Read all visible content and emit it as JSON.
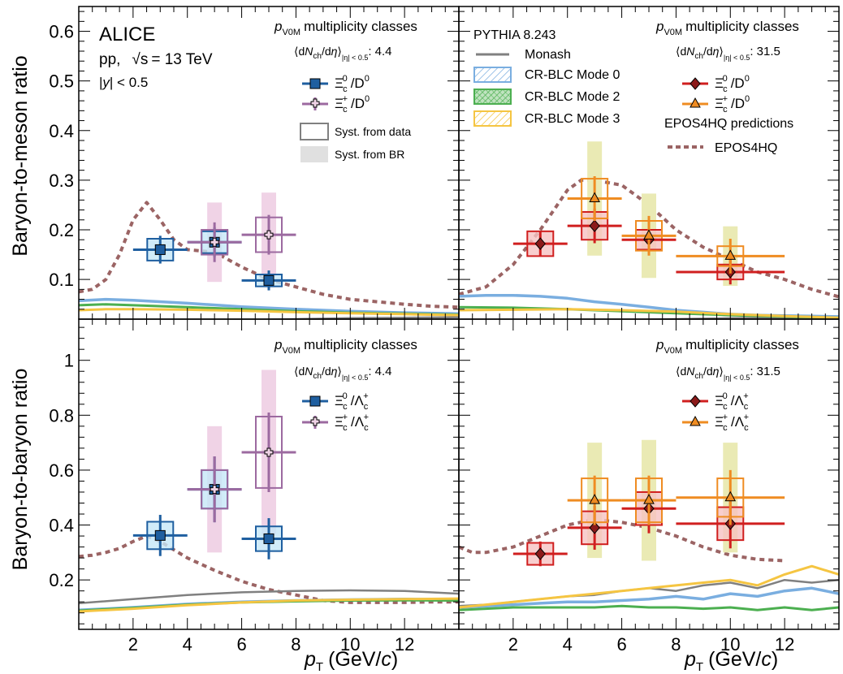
{
  "labels": {
    "ylabel_top": "Baryon-to-meson ratio",
    "ylabel_bottom": "Baryon-to-baryon ratio",
    "xlabel_p": "p",
    "xlabel_sub": "T",
    "xlabel_unit_open": "(GeV/",
    "xlabel_unit_c": "c",
    "xlabel_unit_close": ")",
    "alice": "ALICE",
    "system_pp": "pp,",
    "sqrt_s": "√s",
    "energy": "= 13 TeV",
    "rapidity_open": "|",
    "rapidity_y": "y",
    "rapidity_close": "| < 0.5",
    "class_p": "p",
    "class_sub": "V0M",
    "class_text": "multiplicity classes",
    "mult_open": "⟨d",
    "mult_N": "N",
    "mult_ch": "ch",
    "mult_slash": "/d",
    "mult_eta": "η",
    "mult_close": "⟩",
    "mult_sub": "|η| < 0.5",
    "mult_low": ": 4.4",
    "mult_high": ": 31.5",
    "pythia": "PYTHIA 8.243",
    "monash": "Monash",
    "cr0": "CR-BLC Mode 0",
    "cr2": "CR-BLC Mode 2",
    "cr3": "CR-BLC Mode 3",
    "epos_group": "EPOS4HQ predictions",
    "epos": "EPOS4HQ",
    "syst_data": "Syst. from data",
    "syst_br": "Syst. from BR",
    "xi": "Ξ",
    "xi_sub_0": "c",
    "xi_sup_0": "0",
    "xi_sup_p": "+",
    "slash_D": "/D",
    "D_sup": "0",
    "slash_L": "/Λ",
    "L_sub": "c",
    "L_sup": "+"
  },
  "colors": {
    "blue": "#1f5fa0",
    "blue_fill": "#c6e7f8",
    "purple": "#9c6aa0",
    "purple_fill": "#f0d3e6",
    "red": "#d01f1f",
    "red_fill": "#f6c2c2",
    "orange": "#ef8c22",
    "olive_band": "#eaeab4",
    "epos": "#9b6464",
    "monash": "#808080",
    "cr0": "#7aaee0",
    "cr2": "#4caf50",
    "cr3": "#f5c542"
  },
  "chart_data": [
    {
      "type": "scatter",
      "panel": "top-left",
      "ylabel": "Baryon-to-meson ratio",
      "xlim": [
        0,
        14
      ],
      "ylim": [
        0.02,
        0.65
      ],
      "xticks": [
        2,
        4,
        6,
        8,
        10,
        12
      ],
      "yticks": [
        0.1,
        0.2,
        0.3,
        0.4,
        0.5,
        0.6
      ],
      "mult": "4.4",
      "series": [
        {
          "name": "Ξc0/D0",
          "color": "blue",
          "marker": "square",
          "points": [
            {
              "x": 3,
              "xerr": 1,
              "y": 0.16,
              "stat": 0.028,
              "sys": 0.022,
              "br": 0.0
            },
            {
              "x": 5,
              "xerr": 1,
              "y": 0.175,
              "stat": 0.03,
              "sys": 0.022,
              "br": 0.0
            },
            {
              "x": 7,
              "xerr": 1,
              "y": 0.098,
              "stat": 0.02,
              "sys": 0.012,
              "br": 0.0
            }
          ]
        },
        {
          "name": "Ξc+/D0",
          "color": "purple",
          "marker": "cross",
          "points": [
            {
              "x": 5,
              "xerr": 1,
              "y": 0.175,
              "stat": 0.04,
              "sys": 0.025,
              "br": 0.08
            },
            {
              "x": 7,
              "xerr": 1,
              "y": 0.19,
              "stat": 0.04,
              "sys": 0.035,
              "br": 0.085
            }
          ]
        }
      ],
      "curves": [
        {
          "name": "EPOS4HQ",
          "x": [
            0,
            0.5,
            1,
            1.5,
            2,
            2.5,
            3,
            3.5,
            4,
            5,
            6,
            7,
            8,
            9,
            10,
            11,
            12,
            13,
            14
          ],
          "y": [
            0.075,
            0.08,
            0.1,
            0.15,
            0.22,
            0.255,
            0.22,
            0.18,
            0.16,
            0.155,
            0.125,
            0.1,
            0.085,
            0.07,
            0.06,
            0.055,
            0.05,
            0.046,
            0.044
          ]
        },
        {
          "name": "Monash",
          "x": [
            0,
            2,
            4,
            6,
            8,
            10,
            12,
            14
          ],
          "y": [
            0.012,
            0.014,
            0.016,
            0.018,
            0.02,
            0.022,
            0.023,
            0.024
          ]
        },
        {
          "name": "CR-BLC Mode 0",
          "x": [
            0,
            1,
            2,
            4,
            6,
            8,
            10,
            12,
            14
          ],
          "y": [
            0.057,
            0.06,
            0.058,
            0.052,
            0.045,
            0.04,
            0.036,
            0.033,
            0.031
          ]
        },
        {
          "name": "CR-BLC Mode 2",
          "x": [
            0,
            1,
            2,
            4,
            6,
            8,
            10,
            12,
            14
          ],
          "y": [
            0.048,
            0.05,
            0.048,
            0.044,
            0.04,
            0.036,
            0.033,
            0.031,
            0.029
          ]
        },
        {
          "name": "CR-BLC Mode 3",
          "x": [
            0,
            1,
            2,
            4,
            6,
            8,
            10,
            12,
            14
          ],
          "y": [
            0.038,
            0.04,
            0.04,
            0.039,
            0.037,
            0.034,
            0.032,
            0.03,
            0.028
          ]
        }
      ]
    },
    {
      "type": "scatter",
      "panel": "top-right",
      "xlim": [
        0,
        14
      ],
      "ylim": [
        0.02,
        0.65
      ],
      "xticks": [
        2,
        4,
        6,
        8,
        10,
        12
      ],
      "mult": "31.5",
      "series": [
        {
          "name": "Ξc0/D0",
          "color": "red",
          "marker": "diamond",
          "points": [
            {
              "x": 3,
              "xerr": 1,
              "y": 0.172,
              "stat": 0.025,
              "sys": 0.025,
              "br": 0.0
            },
            {
              "x": 5,
              "xerr": 1,
              "y": 0.208,
              "stat": 0.035,
              "sys": 0.028,
              "br": 0.0
            },
            {
              "x": 7,
              "xerr": 1,
              "y": 0.18,
              "stat": 0.025,
              "sys": 0.02,
              "br": 0.0
            },
            {
              "x": 10,
              "xerr": 2,
              "y": 0.115,
              "stat": 0.025,
              "sys": 0.015,
              "br": 0.0
            }
          ]
        },
        {
          "name": "Ξc+/D0",
          "color": "orange",
          "marker": "triangle",
          "points": [
            {
              "x": 5,
              "xerr": 1,
              "y": 0.263,
              "stat": 0.045,
              "sys": 0.04,
              "br": 0.115
            },
            {
              "x": 7,
              "xerr": 1,
              "y": 0.188,
              "stat": 0.04,
              "sys": 0.03,
              "br": 0.085
            },
            {
              "x": 10,
              "xerr": 2,
              "y": 0.147,
              "stat": 0.035,
              "sys": 0.02,
              "br": 0.06
            }
          ]
        }
      ],
      "curves": [
        {
          "name": "EPOS4HQ",
          "x": [
            0,
            1,
            2,
            3,
            3.5,
            4,
            4.5,
            5,
            6,
            7,
            8,
            9,
            10,
            11,
            12,
            13,
            14
          ],
          "y": [
            0.07,
            0.085,
            0.13,
            0.2,
            0.24,
            0.28,
            0.3,
            0.3,
            0.29,
            0.25,
            0.2,
            0.165,
            0.14,
            0.115,
            0.1,
            0.08,
            0.065
          ]
        },
        {
          "name": "Monash",
          "x": [
            0,
            2,
            4,
            6,
            8,
            10,
            12,
            14
          ],
          "y": [
            0.012,
            0.014,
            0.016,
            0.018,
            0.02,
            0.022,
            0.023,
            0.024
          ]
        },
        {
          "name": "CR-BLC Mode 0",
          "x": [
            0,
            1,
            2,
            3,
            4,
            5,
            6,
            7,
            8,
            9,
            10,
            11,
            12,
            13,
            14
          ],
          "y": [
            0.066,
            0.068,
            0.068,
            0.066,
            0.062,
            0.055,
            0.05,
            0.044,
            0.038,
            0.034,
            0.03,
            0.028,
            0.027,
            0.026,
            0.025
          ]
        },
        {
          "name": "CR-BLC Mode 2",
          "x": [
            0,
            2,
            4,
            6,
            8,
            10,
            12,
            14
          ],
          "y": [
            0.044,
            0.043,
            0.04,
            0.036,
            0.032,
            0.028,
            0.025,
            0.022
          ]
        },
        {
          "name": "CR-BLC Mode 3",
          "x": [
            0,
            2,
            4,
            6,
            8,
            10,
            12,
            14
          ],
          "y": [
            0.038,
            0.039,
            0.04,
            0.038,
            0.035,
            0.03,
            0.026,
            0.023
          ]
        }
      ]
    },
    {
      "type": "scatter",
      "panel": "bottom-left",
      "ylabel": "Baryon-to-baryon ratio",
      "xlim": [
        0,
        14
      ],
      "ylim": [
        0.02,
        1.15
      ],
      "xticks": [
        2,
        4,
        6,
        8,
        10,
        12
      ],
      "yticks": [
        0.2,
        0.4,
        0.6,
        0.8,
        1
      ],
      "mult": "4.4",
      "series": [
        {
          "name": "Ξc0/Λc+",
          "color": "blue",
          "marker": "square",
          "points": [
            {
              "x": 3,
              "xerr": 1,
              "y": 0.362,
              "stat": 0.075,
              "sys": 0.05,
              "br": 0.0
            },
            {
              "x": 5,
              "xerr": 1,
              "y": 0.53,
              "stat": 0.12,
              "sys": 0.07,
              "br": 0.0
            },
            {
              "x": 7,
              "xerr": 1,
              "y": 0.35,
              "stat": 0.075,
              "sys": 0.045,
              "br": 0.0
            }
          ]
        },
        {
          "name": "Ξc+/Λc+",
          "color": "purple",
          "marker": "cross",
          "points": [
            {
              "x": 5,
              "xerr": 1,
              "y": 0.53,
              "stat": 0.12,
              "sys": 0.07,
              "br": 0.23
            },
            {
              "x": 7,
              "xerr": 1,
              "y": 0.665,
              "stat": 0.145,
              "sys": 0.13,
              "br": 0.3
            }
          ]
        }
      ],
      "curves": [
        {
          "name": "EPOS4HQ",
          "x": [
            0,
            0.5,
            1,
            1.5,
            2,
            2.5,
            3,
            4,
            5,
            6,
            7,
            8,
            9,
            10,
            11,
            12,
            13,
            14
          ],
          "y": [
            0.285,
            0.29,
            0.3,
            0.315,
            0.34,
            0.36,
            0.34,
            0.28,
            0.235,
            0.195,
            0.165,
            0.145,
            0.125,
            0.118,
            0.118,
            0.118,
            0.12,
            0.12
          ]
        },
        {
          "name": "Monash",
          "x": [
            0,
            2,
            4,
            6,
            8,
            10,
            12,
            14
          ],
          "y": [
            0.115,
            0.13,
            0.145,
            0.155,
            0.16,
            0.162,
            0.16,
            0.15
          ]
        },
        {
          "name": "CR-BLC Mode 0",
          "x": [
            0,
            2,
            4,
            6,
            8,
            10,
            12,
            14
          ],
          "y": [
            0.09,
            0.1,
            0.112,
            0.12,
            0.125,
            0.128,
            0.13,
            0.128
          ]
        },
        {
          "name": "CR-BLC Mode 2",
          "x": [
            0,
            2,
            4,
            6,
            8,
            10,
            12,
            14
          ],
          "y": [
            0.088,
            0.098,
            0.11,
            0.118,
            0.122,
            0.125,
            0.126,
            0.125
          ]
        },
        {
          "name": "CR-BLC Mode 3",
          "x": [
            0,
            2,
            4,
            6,
            8,
            10,
            12,
            14
          ],
          "y": [
            0.085,
            0.095,
            0.108,
            0.118,
            0.125,
            0.128,
            0.13,
            0.132
          ]
        }
      ]
    },
    {
      "type": "scatter",
      "panel": "bottom-right",
      "xlim": [
        0,
        14
      ],
      "ylim": [
        0.02,
        1.15
      ],
      "xticks": [
        2,
        4,
        6,
        8,
        10,
        12
      ],
      "mult": "31.5",
      "series": [
        {
          "name": "Ξc0/Λc+",
          "color": "red",
          "marker": "diamond",
          "points": [
            {
              "x": 3,
              "xerr": 1,
              "y": 0.295,
              "stat": 0.045,
              "sys": 0.04,
              "br": 0.0
            },
            {
              "x": 5,
              "xerr": 1,
              "y": 0.39,
              "stat": 0.08,
              "sys": 0.06,
              "br": 0.0
            },
            {
              "x": 7,
              "xerr": 1,
              "y": 0.46,
              "stat": 0.09,
              "sys": 0.06,
              "br": 0.0
            },
            {
              "x": 10,
              "xerr": 2,
              "y": 0.405,
              "stat": 0.09,
              "sys": 0.06,
              "br": 0.0
            }
          ]
        },
        {
          "name": "Ξc+/Λc+",
          "color": "orange",
          "marker": "triangle",
          "points": [
            {
              "x": 5,
              "xerr": 1,
              "y": 0.49,
              "stat": 0.09,
              "sys": 0.08,
              "br": 0.21
            },
            {
              "x": 7,
              "xerr": 1,
              "y": 0.49,
              "stat": 0.09,
              "sys": 0.08,
              "br": 0.22
            },
            {
              "x": 10,
              "xerr": 2,
              "y": 0.5,
              "stat": 0.1,
              "sys": 0.07,
              "br": 0.2
            }
          ]
        }
      ],
      "curves": [
        {
          "name": "EPOS4HQ",
          "x": [
            0,
            0.5,
            1,
            2,
            3,
            4,
            5,
            6,
            7,
            8,
            9,
            10,
            11,
            12
          ],
          "y": [
            0.32,
            0.3,
            0.3,
            0.32,
            0.36,
            0.4,
            0.42,
            0.41,
            0.39,
            0.36,
            0.32,
            0.29,
            0.275,
            0.27
          ]
        },
        {
          "name": "Monash",
          "x": [
            0,
            1,
            2,
            3,
            4,
            5,
            6,
            7,
            8,
            9,
            10,
            11,
            12,
            13,
            14
          ],
          "y": [
            0.105,
            0.11,
            0.12,
            0.13,
            0.14,
            0.145,
            0.16,
            0.17,
            0.16,
            0.18,
            0.19,
            0.17,
            0.2,
            0.19,
            0.2
          ]
        },
        {
          "name": "CR-BLC Mode 0",
          "x": [
            0,
            1,
            2,
            3,
            4,
            5,
            6,
            7,
            8,
            9,
            10,
            11,
            12,
            13,
            14
          ],
          "y": [
            0.1,
            0.105,
            0.11,
            0.115,
            0.12,
            0.12,
            0.125,
            0.13,
            0.14,
            0.13,
            0.15,
            0.14,
            0.16,
            0.17,
            0.15
          ]
        },
        {
          "name": "CR-BLC Mode 2",
          "x": [
            0,
            1,
            2,
            3,
            4,
            5,
            6,
            7,
            8,
            9,
            10,
            11,
            12,
            13,
            14
          ],
          "y": [
            0.09,
            0.095,
            0.1,
            0.1,
            0.1,
            0.1,
            0.105,
            0.1,
            0.1,
            0.095,
            0.1,
            0.09,
            0.1,
            0.09,
            0.1
          ]
        },
        {
          "name": "CR-BLC Mode 3",
          "x": [
            0,
            1,
            2,
            3,
            4,
            5,
            6,
            7,
            8,
            9,
            10,
            11,
            12,
            13,
            14
          ],
          "y": [
            0.1,
            0.11,
            0.12,
            0.13,
            0.14,
            0.15,
            0.16,
            0.17,
            0.18,
            0.19,
            0.2,
            0.18,
            0.22,
            0.25,
            0.22
          ]
        }
      ]
    }
  ]
}
